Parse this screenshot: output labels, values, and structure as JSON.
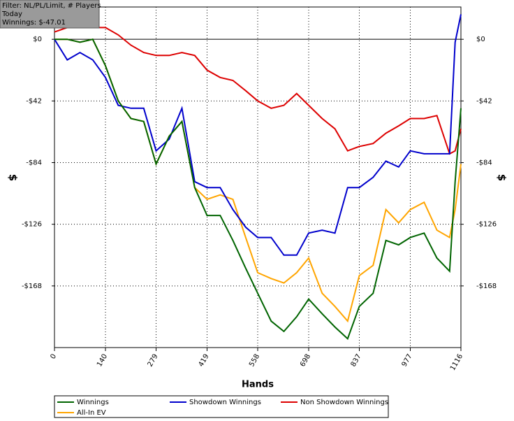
{
  "chart_data": {
    "type": "line",
    "annotations": [
      "Filter: NL/PL/Limit, # Players",
      "Today",
      "Winnings: $-47.01"
    ],
    "x_label": "Hands",
    "y_label": "$",
    "y2_label": "$",
    "x": [
      0,
      35,
      70,
      105,
      140,
      175,
      210,
      245,
      279,
      315,
      350,
      385,
      419,
      455,
      490,
      525,
      558,
      595,
      630,
      665,
      698,
      735,
      770,
      805,
      837,
      875,
      910,
      945,
      977,
      1015,
      1050,
      1085,
      1100,
      1116
    ],
    "xlim": [
      0,
      1116
    ],
    "xticks": [
      0,
      140,
      279,
      419,
      558,
      698,
      837,
      977,
      1116
    ],
    "ylim": [
      -210,
      22
    ],
    "yticks": [
      {
        "value": 0,
        "label": "$0"
      },
      {
        "value": -42,
        "label": "-$42"
      },
      {
        "value": -84,
        "label": "-$84"
      },
      {
        "value": -126,
        "label": "-$126"
      },
      {
        "value": -168,
        "label": "-$168"
      }
    ],
    "grid": true,
    "legend": "bottom",
    "series": [
      {
        "name": "Winnings",
        "color": "#006400",
        "values": [
          0,
          0,
          -2,
          0,
          -18,
          -42,
          -54,
          -56,
          -85,
          -66,
          -56,
          -101,
          -120,
          -120,
          -137,
          -156,
          -173,
          -192,
          -199,
          -189,
          -177,
          -187,
          -196,
          -204,
          -182,
          -173,
          -137,
          -140,
          -135,
          -132,
          -149,
          -158,
          -97,
          -47
        ]
      },
      {
        "name": "Showdown Winnings",
        "color": "#0000cc",
        "values": [
          0,
          -14,
          -9,
          -14,
          -26,
          -45,
          -47,
          -47,
          -76,
          -68,
          -47,
          -97,
          -101,
          -101,
          -116,
          -128,
          -135,
          -135,
          -147,
          -147,
          -132,
          -130,
          -132,
          -101,
          -101,
          -94,
          -83,
          -87,
          -76,
          -78,
          -78,
          -78,
          -2,
          17
        ]
      },
      {
        "name": "Non Showdown Winnings",
        "color": "#dd0000",
        "values": [
          5,
          8,
          10,
          8,
          8,
          3,
          -4,
          -9,
          -11,
          -11,
          -9,
          -11,
          -21,
          -26,
          -28,
          -35,
          -42,
          -47,
          -45,
          -37,
          -45,
          -54,
          -61,
          -76,
          -73,
          -71,
          -64,
          -59,
          -54,
          -54,
          -52,
          -78,
          -76,
          -61
        ]
      },
      {
        "name": "All-In EV",
        "color": "#ffa500",
        "values": [
          0,
          0,
          -2,
          0,
          -18,
          -42,
          -54,
          -56,
          -85,
          -66,
          -56,
          -101,
          -109,
          -106,
          -109,
          -135,
          -159,
          -163,
          -166,
          -159,
          -149,
          -173,
          -182,
          -192,
          -161,
          -154,
          -116,
          -125,
          -116,
          -111,
          -130,
          -135,
          -116,
          -85
        ]
      }
    ]
  }
}
